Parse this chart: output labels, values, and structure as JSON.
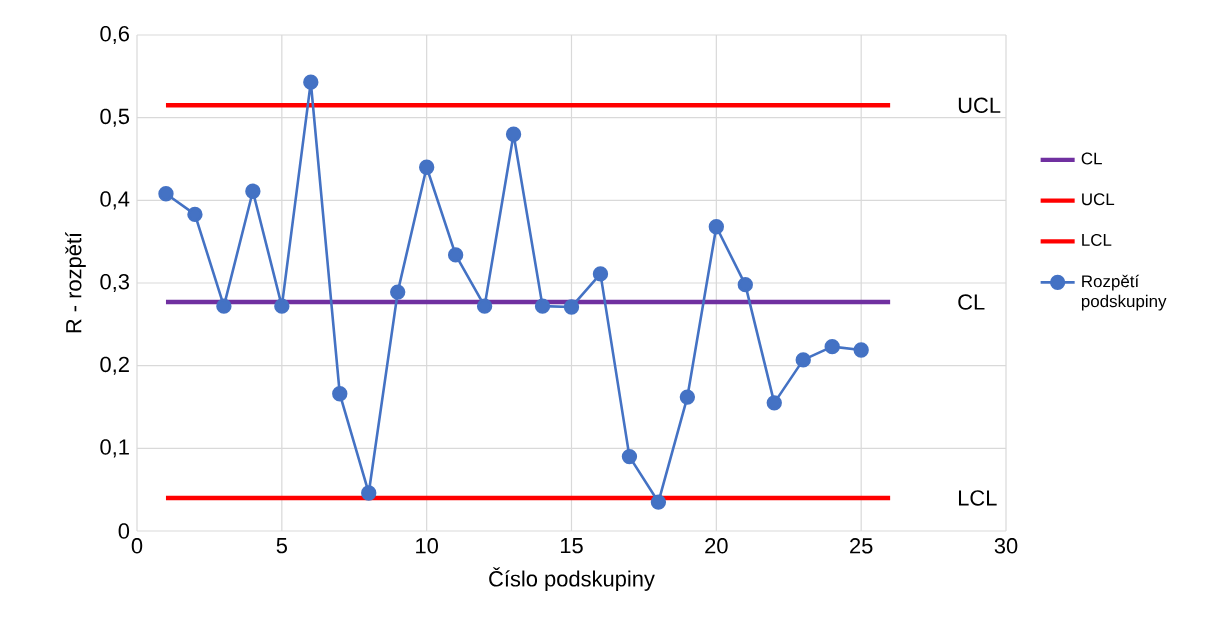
{
  "chart_data": {
    "type": "line",
    "xlabel": "Číslo podskupiny",
    "ylabel": "R - rozpětí",
    "xlim": [
      0,
      30
    ],
    "xticks": [
      0,
      5,
      10,
      15,
      20,
      25,
      30
    ],
    "ylim": [
      0,
      0.6
    ],
    "yticks": [
      {
        "value": 0,
        "label": "0"
      },
      {
        "value": 0.1,
        "label": "0,1"
      },
      {
        "value": 0.2,
        "label": "0,2"
      },
      {
        "value": 0.3,
        "label": "0,3"
      },
      {
        "value": 0.4,
        "label": "0,4"
      },
      {
        "value": 0.5,
        "label": "0,5"
      },
      {
        "value": 0.6,
        "label": "0,6"
      }
    ],
    "grid": true,
    "legend": "right",
    "marker": "circle",
    "series": [
      {
        "name": "CL",
        "color": "#7030a0",
        "x": [
          1,
          26
        ],
        "values": [
          0.277,
          0.277
        ],
        "marker": "none"
      },
      {
        "name": "UCL",
        "color": "#ff0000",
        "x": [
          1,
          26
        ],
        "values": [
          0.515,
          0.515
        ],
        "marker": "none"
      },
      {
        "name": "LCL",
        "color": "#ff0000",
        "x": [
          1,
          26
        ],
        "values": [
          0.04,
          0.04
        ],
        "marker": "none"
      },
      {
        "name": "Rozpětí podskupiny",
        "color": "#4472c4",
        "x": [
          1,
          2,
          3,
          4,
          5,
          6,
          7,
          8,
          9,
          10,
          11,
          12,
          13,
          14,
          15,
          16,
          17,
          18,
          19,
          20,
          21,
          22,
          23,
          24,
          25
        ],
        "values": [
          0.408,
          0.383,
          0.272,
          0.411,
          0.272,
          0.543,
          0.166,
          0.046,
          0.289,
          0.44,
          0.334,
          0.272,
          0.48,
          0.272,
          0.271,
          0.311,
          0.09,
          0.035,
          0.162,
          0.368,
          0.298,
          0.155,
          0.207,
          0.223,
          0.219
        ]
      }
    ],
    "annotations": [
      "CL",
      "UCL",
      "LCL"
    ]
  }
}
